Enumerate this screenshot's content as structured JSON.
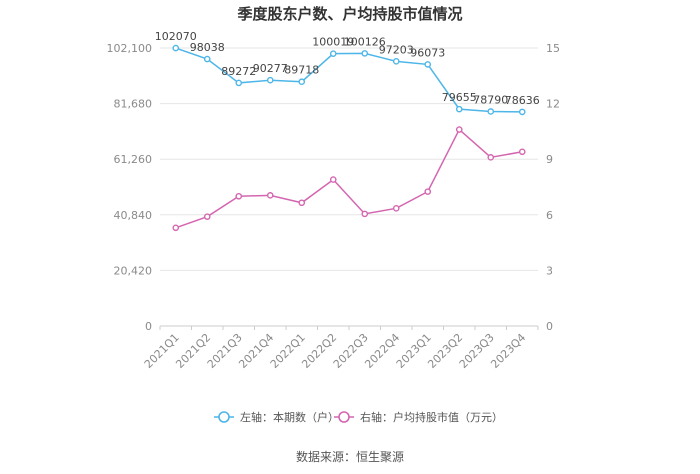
{
  "chart_data": {
    "type": "line",
    "title": "季度股东户数、户均持股市值情况",
    "categories": [
      "2021Q1",
      "2021Q2",
      "2021Q3",
      "2021Q4",
      "2022Q1",
      "2022Q2",
      "2022Q3",
      "2022Q4",
      "2023Q1",
      "2023Q2",
      "2023Q3",
      "2023Q4"
    ],
    "left_axis": {
      "ticks": [
        "0",
        "20,420",
        "40,840",
        "61,260",
        "81,680",
        "102,100"
      ],
      "min": 0,
      "max": 102100
    },
    "right_axis": {
      "ticks": [
        "0",
        "3",
        "6",
        "9",
        "12",
        "15"
      ],
      "min": 0,
      "max": 15
    },
    "series": [
      {
        "name": "左轴：本期数（户）",
        "axis": "left",
        "color": "#4db6e8",
        "values": [
          102070,
          98038,
          89272,
          90277,
          89718,
          100019,
          100126,
          97203,
          96073,
          79655,
          78790,
          78636
        ],
        "labels": [
          "102070",
          "98038",
          "89272",
          "90277",
          "89718",
          "100019",
          "100126",
          "97203",
          "96073",
          "79655",
          "78790",
          "78636"
        ]
      },
      {
        "name": "右轴：户均持股市值（万元）",
        "axis": "right",
        "color": "#d466b0",
        "values": [
          5.3,
          5.9,
          7.0,
          7.05,
          6.65,
          7.9,
          6.05,
          6.35,
          7.25,
          10.6,
          9.1,
          9.4
        ]
      }
    ],
    "grid": true,
    "legend_position": "bottom"
  },
  "source": "数据来源：恒生聚源"
}
